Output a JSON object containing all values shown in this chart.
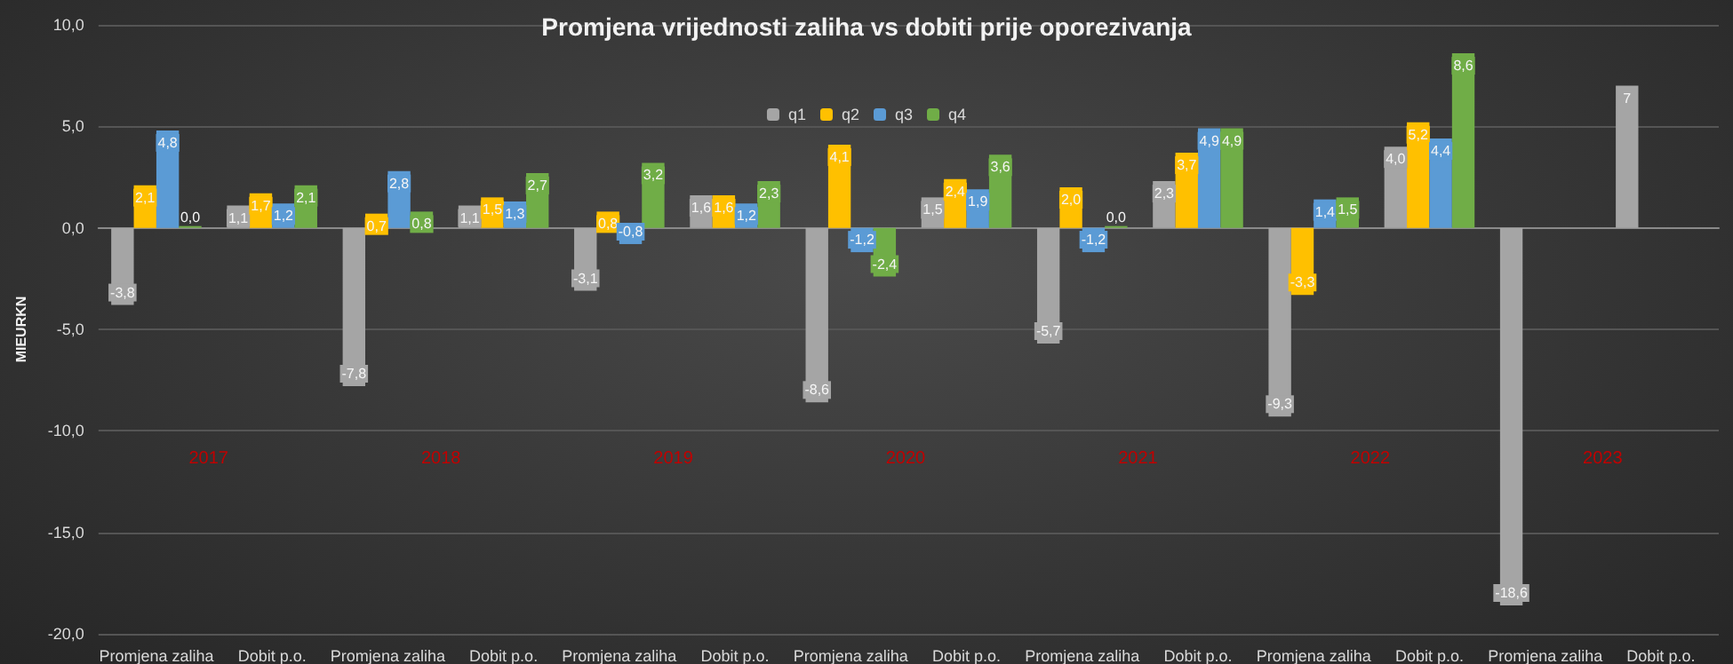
{
  "chart_data": {
    "type": "bar",
    "title": "Promjena vrijednosti zaliha vs dobiti prije oporezivanja",
    "ylabel": "MIEURKN",
    "categories": [
      "Promjena zaliha",
      "Dobit p.o.",
      "Promjena zaliha",
      "Dobit p.o.",
      "Promjena zaliha",
      "Dobit p.o.",
      "Promjena zaliha",
      "Dobit p.o.",
      "Promjena zaliha",
      "Dobit p.o.",
      "Promjena zaliha",
      "Dobit p.o.",
      "Promjena zaliha",
      "Dobit p.o."
    ],
    "series": [
      {
        "name": "q1",
        "color": "#a5a5a5",
        "values": [
          -3.8,
          1.1,
          -7.8,
          1.1,
          -3.1,
          1.6,
          -8.6,
          1.5,
          -5.7,
          2.3,
          -9.3,
          4.0,
          -18.6,
          7
        ],
        "value_labels": [
          "-3,8",
          "1,1",
          "-7,8",
          "1,1",
          "-3,1",
          "1,6",
          "-8,6",
          "1,5",
          "-5,7",
          "2,3",
          "-9,3",
          "4,0",
          "-18,6",
          "7"
        ]
      },
      {
        "name": "q2",
        "color": "#ffc000",
        "values": [
          2.1,
          1.7,
          0.7,
          1.5,
          0.8,
          1.6,
          4.1,
          2.4,
          2.0,
          3.7,
          -3.3,
          5.2,
          null,
          null
        ],
        "value_labels": [
          "2,1",
          "1,7",
          "0,7",
          "1,5",
          "0,8",
          "1,6",
          "4,1",
          "2,4",
          "2,0",
          "3,7",
          "-3,3",
          "5,2",
          null,
          null
        ]
      },
      {
        "name": "q3",
        "color": "#5b9bd5",
        "values": [
          4.8,
          1.2,
          2.8,
          1.3,
          -0.8,
          1.2,
          -1.2,
          1.9,
          -1.2,
          4.9,
          1.4,
          4.4,
          null,
          null
        ],
        "value_labels": [
          "4,8",
          "1,2",
          "2,8",
          "1,3",
          "-0,8",
          "1,2",
          "-1,2",
          "1,9",
          "-1,2",
          "4,9",
          "1,4",
          "4,4",
          null,
          null
        ]
      },
      {
        "name": "q4",
        "color": "#70ad47",
        "values": [
          0.0,
          2.1,
          0.8,
          2.7,
          3.2,
          2.3,
          -2.4,
          3.6,
          0.0,
          4.9,
          1.5,
          8.6,
          null,
          null
        ],
        "value_labels": [
          "0,0",
          "2,1",
          "0,8",
          "2,7",
          "3,2",
          "2,3",
          "-2,4",
          "3,6",
          "0,0",
          "4,9",
          "1,5",
          "8,6",
          null,
          null
        ]
      }
    ],
    "annotations": [
      "2017",
      "2018",
      "2019",
      "2020",
      "2021",
      "2022",
      "2023"
    ],
    "ylim": [
      -20,
      10
    ],
    "yticks": [
      {
        "value": -20,
        "label": "-20,0"
      },
      {
        "value": -15,
        "label": "-15,0"
      },
      {
        "value": -10,
        "label": "-10,0"
      },
      {
        "value": -5,
        "label": "-5,0"
      },
      {
        "value": 0,
        "label": "0,0"
      },
      {
        "value": 5,
        "label": "5,0"
      },
      {
        "value": 10,
        "label": "10,0"
      }
    ],
    "grid": "y",
    "legend": "top"
  }
}
